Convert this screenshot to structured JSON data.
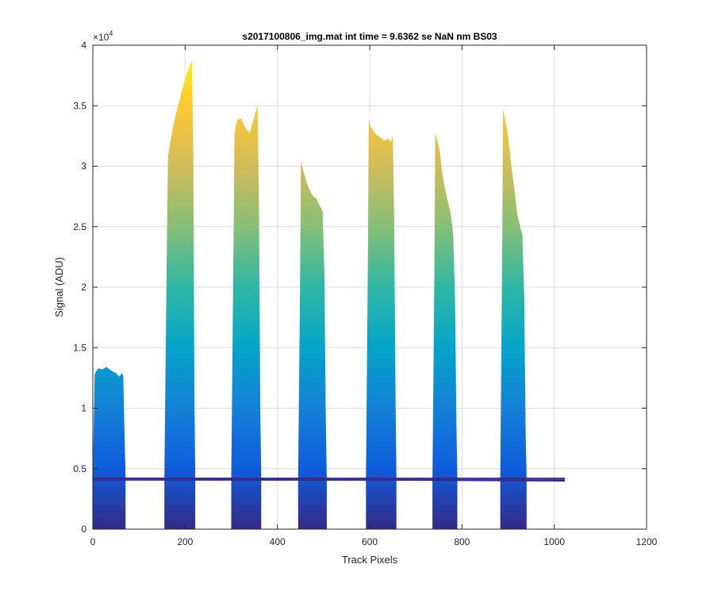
{
  "chart_data": {
    "type": "area",
    "title": "s2017100806_img.mat int time = 9.6362 se  NaN nm BS03",
    "xlabel": "Track Pixels",
    "ylabel": "Signal (ADU)",
    "xlim": [
      0,
      1200
    ],
    "ylim": [
      0,
      40000
    ],
    "xticks": [
      0,
      200,
      400,
      600,
      800,
      1000,
      1200
    ],
    "xtick_labels": [
      "0",
      "200",
      "400",
      "600",
      "800",
      "1000",
      "1200"
    ],
    "yticks": [
      0,
      5000,
      10000,
      15000,
      20000,
      25000,
      30000,
      35000,
      40000
    ],
    "ytick_labels": [
      "0",
      "0.5",
      "1",
      "1.5",
      "2",
      "2.5",
      "3",
      "3.5",
      "4"
    ],
    "y_exponent_label": "×10",
    "y_exponent_power": "4",
    "grid": true,
    "baseline": 4200,
    "baseline_end_x": 1023,
    "colormap": [
      "#352a87",
      "#0f5cdd",
      "#1481d6",
      "#06a4ca",
      "#2eb7a4",
      "#87bf77",
      "#d1bb59",
      "#fec832",
      "#f9fb0e"
    ],
    "peaks": [
      {
        "name": "peak-1",
        "x": [
          0,
          2,
          4,
          8,
          12,
          20,
          30,
          40,
          50,
          58,
          62,
          66,
          68,
          71
        ],
        "y": [
          4200,
          9000,
          12800,
          13100,
          13300,
          13200,
          13400,
          13100,
          12900,
          12600,
          12900,
          12700,
          9000,
          4200
        ]
      },
      {
        "name": "peak-2",
        "x": [
          155,
          161,
          163,
          168,
          175,
          185,
          195,
          205,
          210,
          215,
          218,
          220,
          222
        ],
        "y": [
          4200,
          25000,
          30800,
          32000,
          33500,
          35000,
          36500,
          37800,
          38400,
          38700,
          30000,
          12000,
          4200
        ]
      },
      {
        "name": "peak-3",
        "x": [
          300,
          305,
          307,
          312,
          320,
          330,
          340,
          348,
          353,
          357,
          360,
          363,
          365
        ],
        "y": [
          4200,
          24000,
          32700,
          33700,
          34000,
          33200,
          32700,
          33800,
          34500,
          35000,
          27000,
          10000,
          4200
        ]
      },
      {
        "name": "peak-4",
        "x": [
          445,
          449,
          451,
          455,
          462,
          470,
          478,
          485,
          492,
          498,
          502,
          505,
          507
        ],
        "y": [
          4200,
          20000,
          30500,
          29800,
          28800,
          28000,
          27500,
          27300,
          26700,
          26300,
          21000,
          9000,
          4200
        ]
      },
      {
        "name": "peak-5",
        "x": [
          592,
          596,
          598,
          603,
          612,
          622,
          632,
          640,
          646,
          650,
          653,
          656,
          658
        ],
        "y": [
          4200,
          22000,
          33800,
          33200,
          32700,
          32400,
          32100,
          32300,
          32000,
          32500,
          26000,
          11000,
          4200
        ]
      },
      {
        "name": "peak-6",
        "x": [
          736,
          740,
          742,
          746,
          752,
          758,
          764,
          770,
          776,
          781,
          785,
          788,
          790
        ],
        "y": [
          4200,
          20000,
          32800,
          32200,
          31200,
          29200,
          28000,
          27000,
          26000,
          24300,
          19000,
          8500,
          4200
        ]
      },
      {
        "name": "peak-7",
        "x": [
          883,
          887,
          889,
          893,
          900,
          907,
          914,
          920,
          926,
          931,
          935,
          938,
          940
        ],
        "y": [
          4200,
          22000,
          34700,
          34000,
          32500,
          30000,
          28000,
          26000,
          25000,
          24300,
          19000,
          8000,
          4200
        ]
      }
    ]
  }
}
